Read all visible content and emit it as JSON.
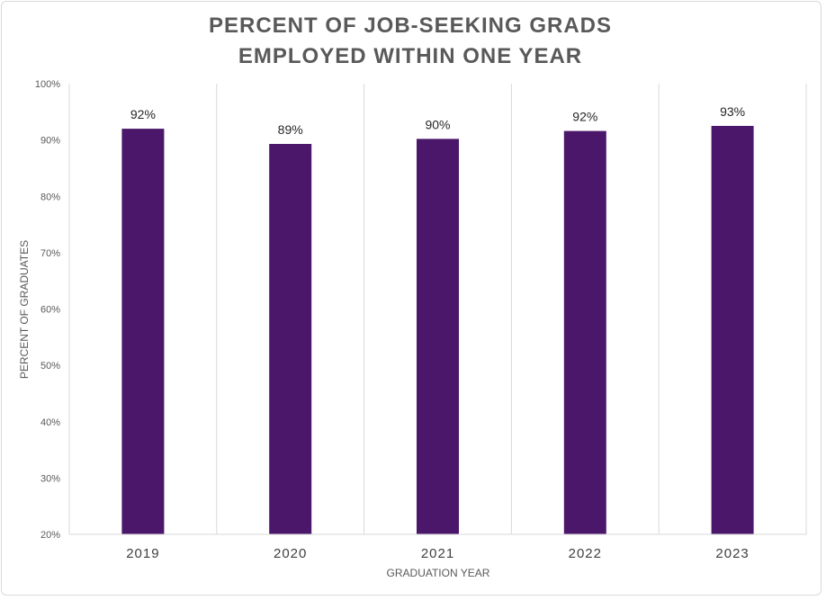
{
  "chart_data": {
    "type": "bar",
    "title_lines": [
      "PERCENT OF JOB-SEEKING GRADS",
      "EMPLOYED WITHIN ONE YEAR"
    ],
    "categories": [
      "2019",
      "2020",
      "2021",
      "2022",
      "2023"
    ],
    "values": [
      92,
      89.3,
      90.2,
      91.6,
      92.5
    ],
    "data_labels": [
      "92%",
      "89%",
      "90%",
      "92%",
      "93%"
    ],
    "ylim": [
      20,
      100
    ],
    "yticks": [
      20,
      30,
      40,
      50,
      60,
      70,
      80,
      90,
      100
    ],
    "ytick_labels": [
      "20%",
      "30%",
      "40%",
      "50%",
      "60%",
      "70%",
      "80%",
      "90%",
      "100%"
    ],
    "xlabel": "GRADUATION YEAR",
    "ylabel": "PERCENT OF GRADUATES",
    "grid": "vertical-separators",
    "bar_color": "#4b176b"
  }
}
